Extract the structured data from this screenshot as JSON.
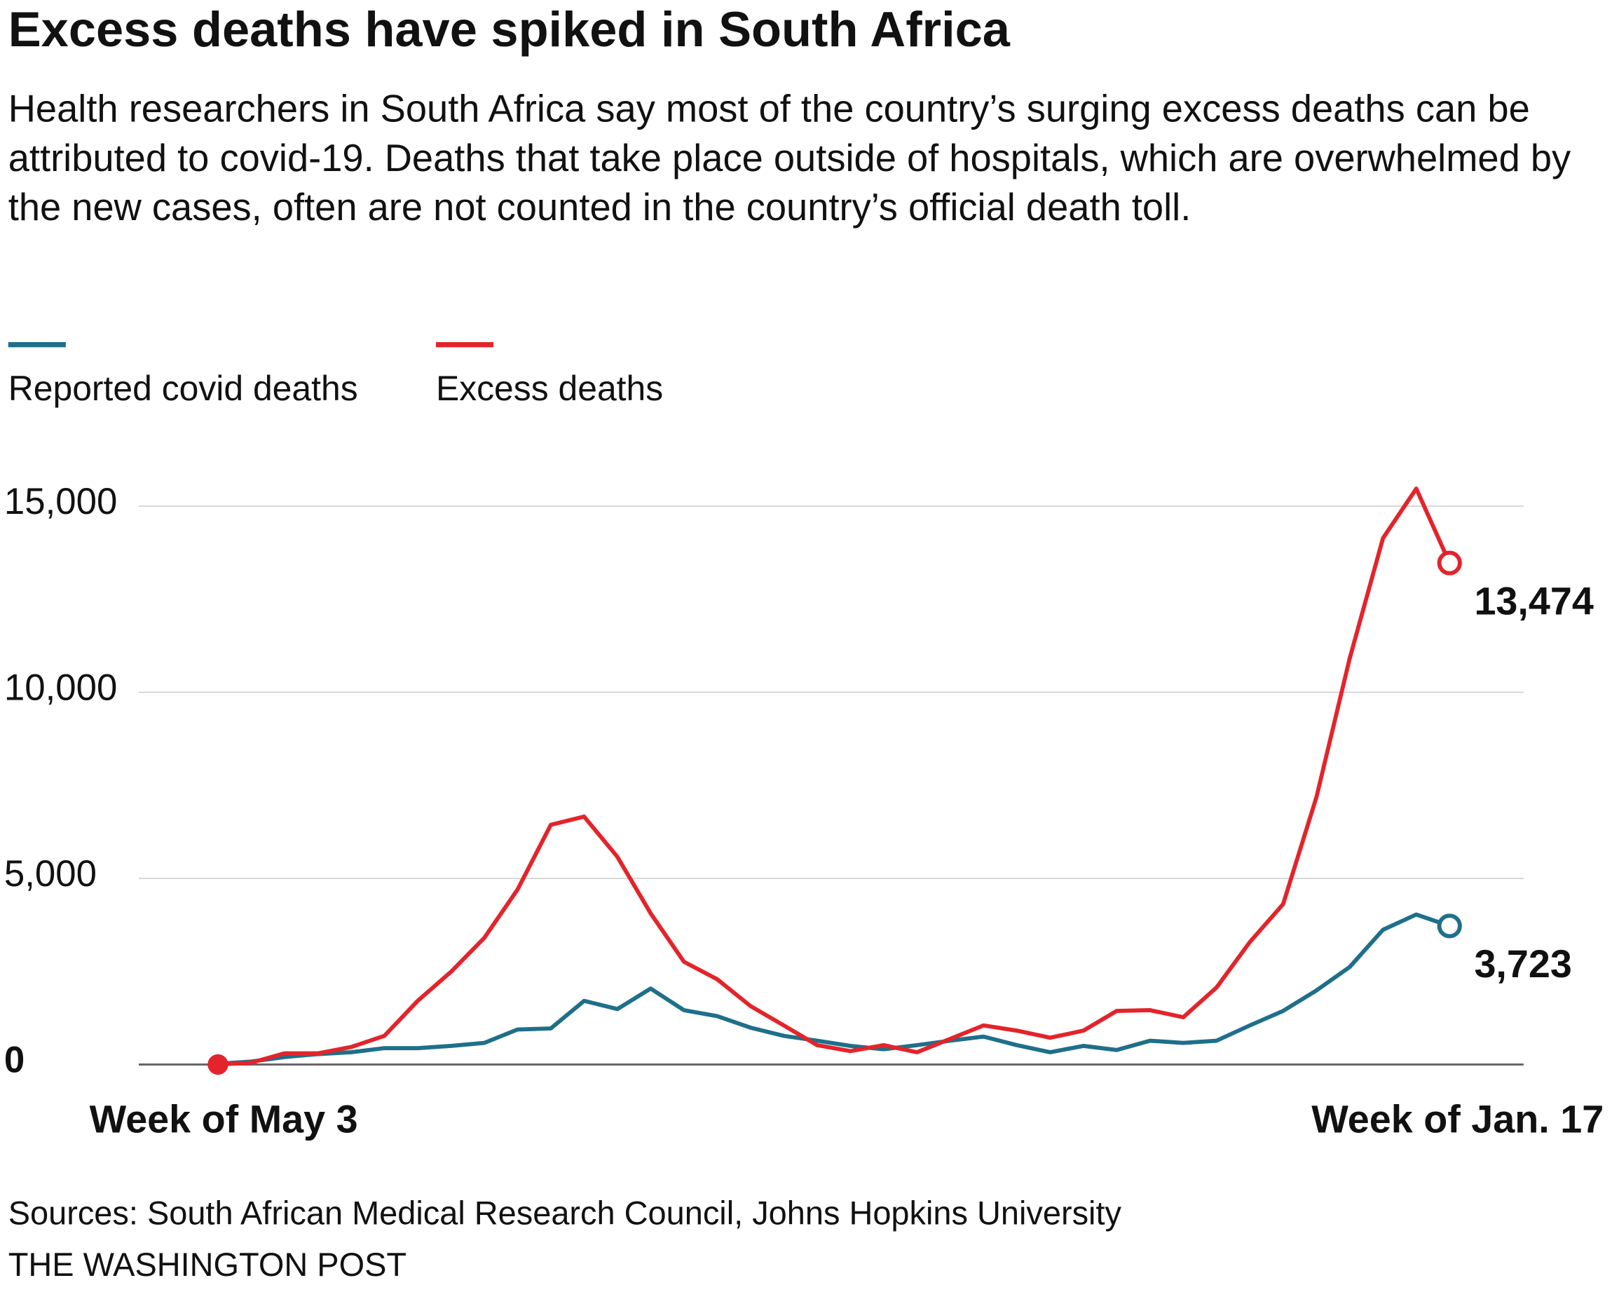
{
  "chart_data": {
    "type": "line",
    "title": "Excess deaths have spiked in South Africa",
    "subtitle": "Health researchers in South Africa say most of the country’s surging excess deaths can be attributed to covid-19. Deaths that take place outside of hospitals, which are overwhelmed by the new cases, often are not counted in the country’s official death toll.",
    "source": "Sources: South African Medical Research Council, Johns Hopkins University",
    "credit": "THE WASHINGTON POST",
    "categories": [
      "Week of May 3",
      null,
      null,
      null,
      null,
      null,
      null,
      null,
      null,
      null,
      null,
      null,
      null,
      null,
      null,
      null,
      null,
      null,
      null,
      null,
      null,
      null,
      null,
      null,
      null,
      null,
      null,
      null,
      null,
      null,
      null,
      null,
      null,
      null,
      null,
      null,
      null,
      "Week of Jan. 17"
    ],
    "series": [
      {
        "name": "Reported covid deaths",
        "color": "#1f6f8b",
        "values": [
          20,
          80,
          200,
          280,
          330,
          440,
          440,
          500,
          580,
          940,
          970,
          1710,
          1490,
          2040,
          1460,
          1300,
          990,
          770,
          640,
          500,
          410,
          520,
          640,
          750,
          520,
          330,
          500,
          390,
          640,
          580,
          640,
          1050,
          1440,
          1990,
          2620,
          3620,
          4030,
          3723
        ],
        "value_labels": [
          null,
          null,
          null,
          null,
          null,
          null,
          null,
          null,
          null,
          null,
          null,
          null,
          null,
          null,
          null,
          null,
          null,
          null,
          null,
          null,
          null,
          null,
          null,
          null,
          null,
          null,
          null,
          null,
          null,
          null,
          null,
          null,
          null,
          null,
          null,
          null,
          null,
          "3,723"
        ]
      },
      {
        "name": "Excess deaths",
        "color": "#e3242b",
        "values": [
          0,
          50,
          300,
          300,
          470,
          770,
          1710,
          2490,
          3400,
          4700,
          6440,
          6660,
          5580,
          4060,
          2760,
          2290,
          1570,
          1050,
          520,
          360,
          520,
          330,
          690,
          1050,
          910,
          720,
          910,
          1440,
          1460,
          1270,
          2070,
          3290,
          4310,
          7180,
          10910,
          14140,
          15470,
          13474
        ],
        "value_labels": [
          null,
          null,
          null,
          null,
          null,
          null,
          null,
          null,
          null,
          null,
          null,
          null,
          null,
          null,
          null,
          null,
          null,
          null,
          null,
          null,
          null,
          null,
          null,
          null,
          null,
          null,
          null,
          null,
          null,
          null,
          null,
          null,
          null,
          null,
          null,
          null,
          null,
          "13,474"
        ]
      }
    ],
    "ylim": [
      0,
      16000
    ],
    "yticks": [
      0,
      {
        "value": 5000,
        "label": "5,000"
      },
      {
        "value": 10000,
        "label": "10,000"
      },
      {
        "value": 15000,
        "label": "15,000"
      }
    ],
    "grid": true
  }
}
